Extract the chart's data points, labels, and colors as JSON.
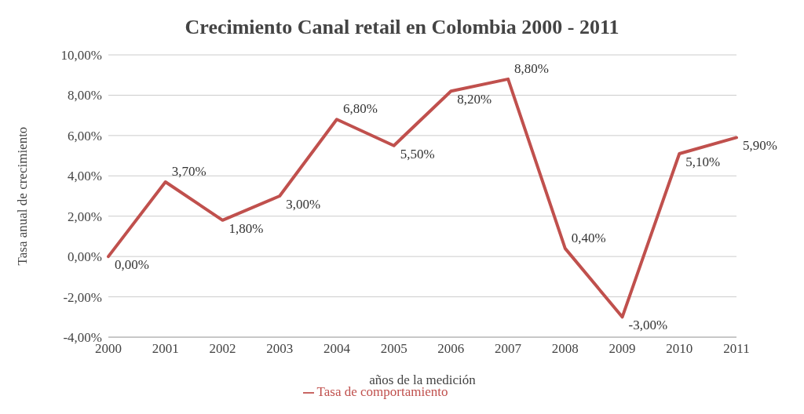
{
  "chart_data": {
    "type": "line",
    "title": "Crecimiento Canal retail en Colombia 2000 - 2011",
    "xlabel": "años de la medición",
    "ylabel": "Tasa anual de crecimiento",
    "categories": [
      "2000",
      "2001",
      "2002",
      "2003",
      "2004",
      "2005",
      "2006",
      "2007",
      "2008",
      "2009",
      "2010",
      "2011"
    ],
    "series": [
      {
        "name": "Tasa de comportamiento",
        "color": "#c0504d",
        "values": [
          0,
          3.7,
          1.8,
          3.0,
          6.8,
          5.5,
          8.2,
          8.8,
          0.4,
          -3.0,
          5.1,
          5.9
        ],
        "value_labels": [
          "0,00%",
          "3,70%",
          "1,80%",
          "3,00%",
          "6,80%",
          "5,50%",
          "8,20%",
          "8,80%",
          "0,40%",
          "-3,00%",
          "5,10%",
          "5,90%"
        ]
      }
    ],
    "ylim": [
      -4,
      10
    ],
    "yticks": [
      {
        "value": -4,
        "label": "-4,00%"
      },
      {
        "value": -2,
        "label": "-2,00%"
      },
      {
        "value": 0,
        "label": "0,00%"
      },
      {
        "value": 2,
        "label": "2,00%"
      },
      {
        "value": 4,
        "label": "4,00%"
      },
      {
        "value": 6,
        "label": "6,00%"
      },
      {
        "value": 8,
        "label": "8,00%"
      },
      {
        "value": 10,
        "label": "10,00%"
      }
    ],
    "grid": "y",
    "legend": "bottom",
    "marker": "none",
    "line_style": "solid"
  }
}
